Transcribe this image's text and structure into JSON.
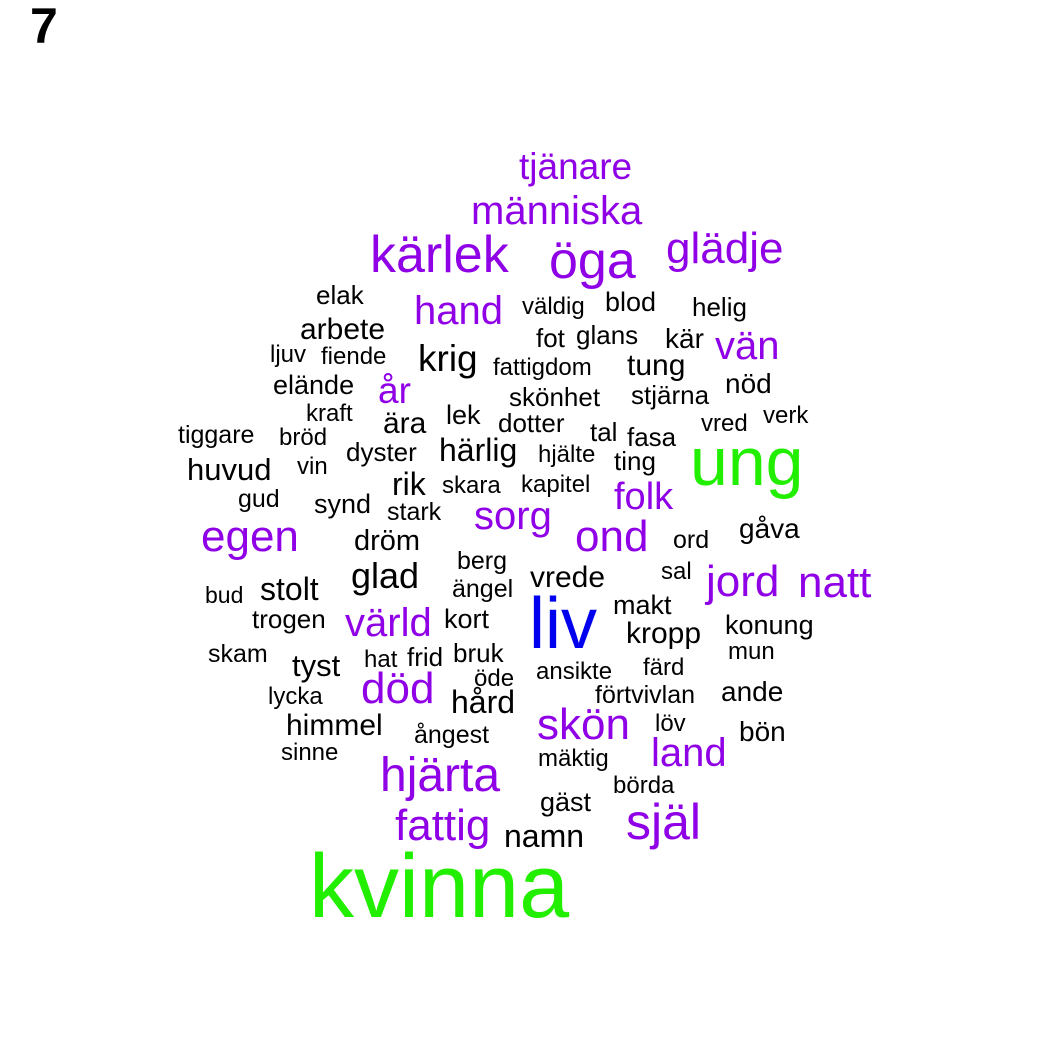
{
  "panel_label": "7",
  "colors": {
    "green": "#22ee00",
    "blue": "#0000ee",
    "purple": "#8f00e6",
    "black": "#000000"
  },
  "words": [
    {
      "text": "tjänare",
      "color": "purple"
    },
    {
      "text": "människa",
      "color": "purple"
    },
    {
      "text": "kärlek",
      "color": "purple"
    },
    {
      "text": "öga",
      "color": "purple"
    },
    {
      "text": "glädje",
      "color": "purple"
    },
    {
      "text": "elak",
      "color": "black"
    },
    {
      "text": "hand",
      "color": "purple"
    },
    {
      "text": "väldig",
      "color": "black"
    },
    {
      "text": "blod",
      "color": "black"
    },
    {
      "text": "helig",
      "color": "black"
    },
    {
      "text": "arbete",
      "color": "black"
    },
    {
      "text": "fot",
      "color": "black"
    },
    {
      "text": "glans",
      "color": "black"
    },
    {
      "text": "kär",
      "color": "black"
    },
    {
      "text": "vän",
      "color": "purple"
    },
    {
      "text": "ljuv",
      "color": "black"
    },
    {
      "text": "fiende",
      "color": "black"
    },
    {
      "text": "krig",
      "color": "black"
    },
    {
      "text": "fattigdom",
      "color": "black"
    },
    {
      "text": "tung",
      "color": "black"
    },
    {
      "text": "elände",
      "color": "black"
    },
    {
      "text": "år",
      "color": "purple"
    },
    {
      "text": "nöd",
      "color": "black"
    },
    {
      "text": "skönhet",
      "color": "black"
    },
    {
      "text": "stjärna",
      "color": "black"
    },
    {
      "text": "kraft",
      "color": "black"
    },
    {
      "text": "lek",
      "color": "black"
    },
    {
      "text": "ära",
      "color": "black"
    },
    {
      "text": "dotter",
      "color": "black"
    },
    {
      "text": "vred",
      "color": "black"
    },
    {
      "text": "verk",
      "color": "black"
    },
    {
      "text": "tiggare",
      "color": "black"
    },
    {
      "text": "bröd",
      "color": "black"
    },
    {
      "text": "tal",
      "color": "black"
    },
    {
      "text": "fasa",
      "color": "black"
    },
    {
      "text": "ung",
      "color": "green"
    },
    {
      "text": "dyster",
      "color": "black"
    },
    {
      "text": "härlig",
      "color": "black"
    },
    {
      "text": "hjälte",
      "color": "black"
    },
    {
      "text": "ting",
      "color": "black"
    },
    {
      "text": "huvud",
      "color": "black"
    },
    {
      "text": "vin",
      "color": "black"
    },
    {
      "text": "rik",
      "color": "black"
    },
    {
      "text": "skara",
      "color": "black"
    },
    {
      "text": "kapitel",
      "color": "black"
    },
    {
      "text": "folk",
      "color": "purple"
    },
    {
      "text": "gud",
      "color": "black"
    },
    {
      "text": "synd",
      "color": "black"
    },
    {
      "text": "stark",
      "color": "black"
    },
    {
      "text": "sorg",
      "color": "purple"
    },
    {
      "text": "gåva",
      "color": "black"
    },
    {
      "text": "egen",
      "color": "purple"
    },
    {
      "text": "dröm",
      "color": "black"
    },
    {
      "text": "ond",
      "color": "purple"
    },
    {
      "text": "ord",
      "color": "black"
    },
    {
      "text": "berg",
      "color": "black"
    },
    {
      "text": "sal",
      "color": "black"
    },
    {
      "text": "glad",
      "color": "black"
    },
    {
      "text": "vrede",
      "color": "black"
    },
    {
      "text": "jord",
      "color": "purple"
    },
    {
      "text": "natt",
      "color": "purple"
    },
    {
      "text": "bud",
      "color": "black"
    },
    {
      "text": "stolt",
      "color": "black"
    },
    {
      "text": "ängel",
      "color": "black"
    },
    {
      "text": "makt",
      "color": "black"
    },
    {
      "text": "liv",
      "color": "blue"
    },
    {
      "text": "trogen",
      "color": "black"
    },
    {
      "text": "värld",
      "color": "purple"
    },
    {
      "text": "kort",
      "color": "black"
    },
    {
      "text": "konung",
      "color": "black"
    },
    {
      "text": "kropp",
      "color": "black"
    },
    {
      "text": "skam",
      "color": "black"
    },
    {
      "text": "tyst",
      "color": "black"
    },
    {
      "text": "hat",
      "color": "black"
    },
    {
      "text": "frid",
      "color": "black"
    },
    {
      "text": "bruk",
      "color": "black"
    },
    {
      "text": "mun",
      "color": "black"
    },
    {
      "text": "öde",
      "color": "black"
    },
    {
      "text": "ansikte",
      "color": "black"
    },
    {
      "text": "färd",
      "color": "black"
    },
    {
      "text": "lycka",
      "color": "black"
    },
    {
      "text": "död",
      "color": "purple"
    },
    {
      "text": "förtvivlan",
      "color": "black"
    },
    {
      "text": "ande",
      "color": "black"
    },
    {
      "text": "hård",
      "color": "black"
    },
    {
      "text": "himmel",
      "color": "black"
    },
    {
      "text": "skön",
      "color": "purple"
    },
    {
      "text": "löv",
      "color": "black"
    },
    {
      "text": "ångest",
      "color": "black"
    },
    {
      "text": "bön",
      "color": "black"
    },
    {
      "text": "sinne",
      "color": "black"
    },
    {
      "text": "land",
      "color": "purple"
    },
    {
      "text": "mäktig",
      "color": "black"
    },
    {
      "text": "hjärta",
      "color": "purple"
    },
    {
      "text": "börda",
      "color": "black"
    },
    {
      "text": "gäst",
      "color": "black"
    },
    {
      "text": "själ",
      "color": "purple"
    },
    {
      "text": "fattig",
      "color": "purple"
    },
    {
      "text": "namn",
      "color": "black"
    },
    {
      "text": "kvinna",
      "color": "green"
    }
  ]
}
